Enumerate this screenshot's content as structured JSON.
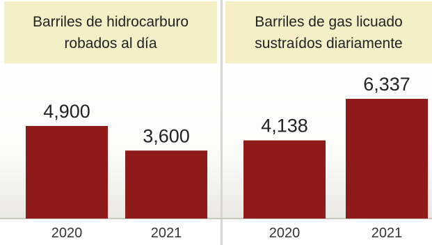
{
  "chart_data": [
    {
      "type": "bar",
      "title": "Barriles de hidrocarburo robados al día",
      "title_lines": [
        "Barriles de hidrocarburo",
        "robados al día"
      ],
      "categories": [
        "2020",
        "2021"
      ],
      "values": [
        4900,
        3600
      ],
      "value_labels": [
        "4,900",
        "3,600"
      ],
      "ylim": [
        0,
        7000
      ],
      "xlabel": "",
      "ylabel": "",
      "grid": false,
      "legend": "none"
    },
    {
      "type": "bar",
      "title": "Barriles de gas licuado sustraídos diariamente",
      "title_lines": [
        "Barriles de gas licuado",
        "sustraídos diariamente"
      ],
      "categories": [
        "2020",
        "2021"
      ],
      "values": [
        4138,
        6337
      ],
      "value_labels": [
        "4,138",
        "6,337"
      ],
      "ylim": [
        0,
        7000
      ],
      "xlabel": "",
      "ylabel": "",
      "grid": false,
      "legend": "none"
    }
  ],
  "colors": {
    "bar": "#8e1a1a",
    "header_background": "#f4efc6",
    "text": "#222222"
  }
}
